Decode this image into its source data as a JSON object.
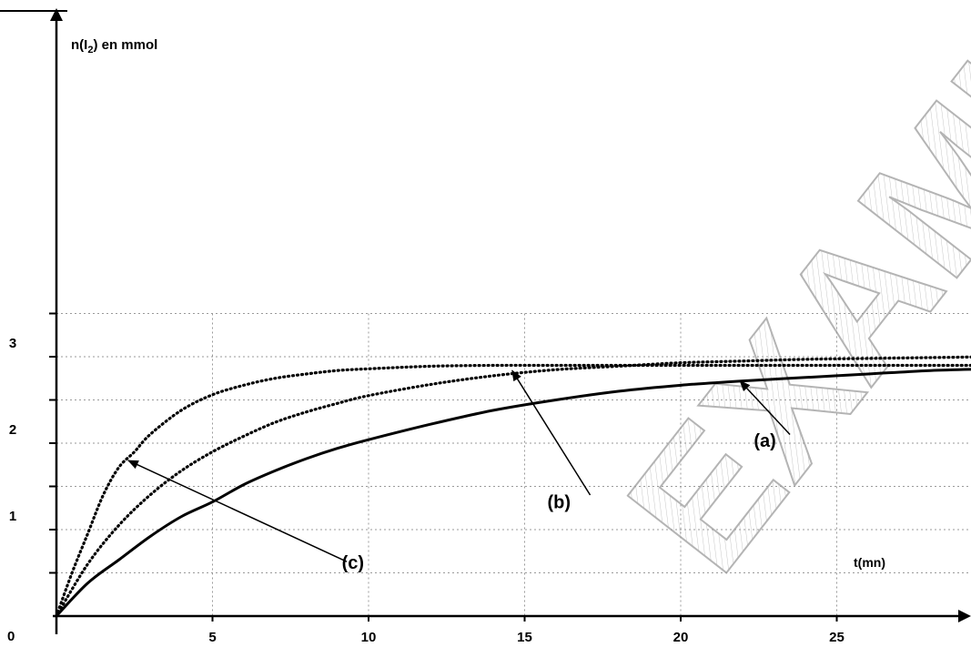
{
  "chart_data": {
    "type": "line",
    "title": "",
    "ylabel": "n(I",
    "ylabel_sub": "2",
    "ylabel_rest": ") en mmol",
    "xlabel": "t(mn)",
    "origin_label": "0",
    "xlim": [
      0,
      30
    ],
    "ylim": [
      0,
      3.5
    ],
    "x_ticks": [
      "5",
      "10",
      "15",
      "20",
      "25"
    ],
    "x_tick_values": [
      5,
      10,
      15,
      20,
      25
    ],
    "y_ticks": [
      "1",
      "2",
      "3"
    ],
    "y_tick_values": [
      1,
      2,
      3
    ],
    "grid": true,
    "watermark": "EXAMINO",
    "series": [
      {
        "name": "(a)",
        "style": "solid",
        "x": [
          0,
          1,
          2,
          3,
          4,
          5,
          6,
          7,
          8,
          9,
          10,
          12,
          14,
          16,
          18,
          20,
          22,
          24,
          26,
          28,
          30
        ],
        "y": [
          0,
          0.38,
          0.65,
          0.92,
          1.15,
          1.32,
          1.52,
          1.68,
          1.82,
          1.94,
          2.04,
          2.22,
          2.38,
          2.5,
          2.6,
          2.67,
          2.72,
          2.76,
          2.8,
          2.84,
          2.86
        ]
      },
      {
        "name": "(b)",
        "style": "dotted",
        "x": [
          0,
          1,
          2,
          3,
          4,
          5,
          6,
          7,
          8,
          9,
          10,
          12,
          14,
          16,
          18,
          20,
          22,
          24,
          26,
          28,
          30
        ],
        "y": [
          0,
          0.6,
          1.05,
          1.4,
          1.68,
          1.9,
          2.08,
          2.24,
          2.36,
          2.46,
          2.55,
          2.68,
          2.78,
          2.85,
          2.89,
          2.93,
          2.95,
          2.97,
          2.98,
          2.99,
          3.0
        ]
      },
      {
        "name": "(c)",
        "style": "dotted",
        "x": [
          0,
          0.5,
          1,
          1.5,
          2,
          2.5,
          3,
          4,
          5,
          6,
          7,
          8,
          9,
          10,
          12,
          14,
          16,
          18,
          20,
          22,
          24,
          26,
          28,
          30
        ],
        "y": [
          0,
          0.5,
          0.95,
          1.4,
          1.72,
          1.9,
          2.1,
          2.38,
          2.56,
          2.67,
          2.75,
          2.8,
          2.84,
          2.86,
          2.89,
          2.9,
          2.9,
          2.9,
          2.9,
          2.9,
          2.9,
          2.9,
          2.9,
          2.9
        ]
      }
    ],
    "annotations": [
      {
        "text": "(a)",
        "label_at": [
          22.7,
          1.96
        ],
        "arrow_from": [
          23.5,
          2.1
        ],
        "arrow_to": [
          21.9,
          2.72
        ]
      },
      {
        "text": "(b)",
        "label_at": [
          16.1,
          1.25
        ],
        "arrow_from": [
          17.1,
          1.4
        ],
        "arrow_to": [
          14.6,
          2.84
        ]
      },
      {
        "text": "(c)",
        "label_at": [
          9.5,
          0.55
        ],
        "arrow_from": [
          9.3,
          0.63
        ],
        "arrow_to": [
          2.3,
          1.8
        ]
      }
    ]
  }
}
